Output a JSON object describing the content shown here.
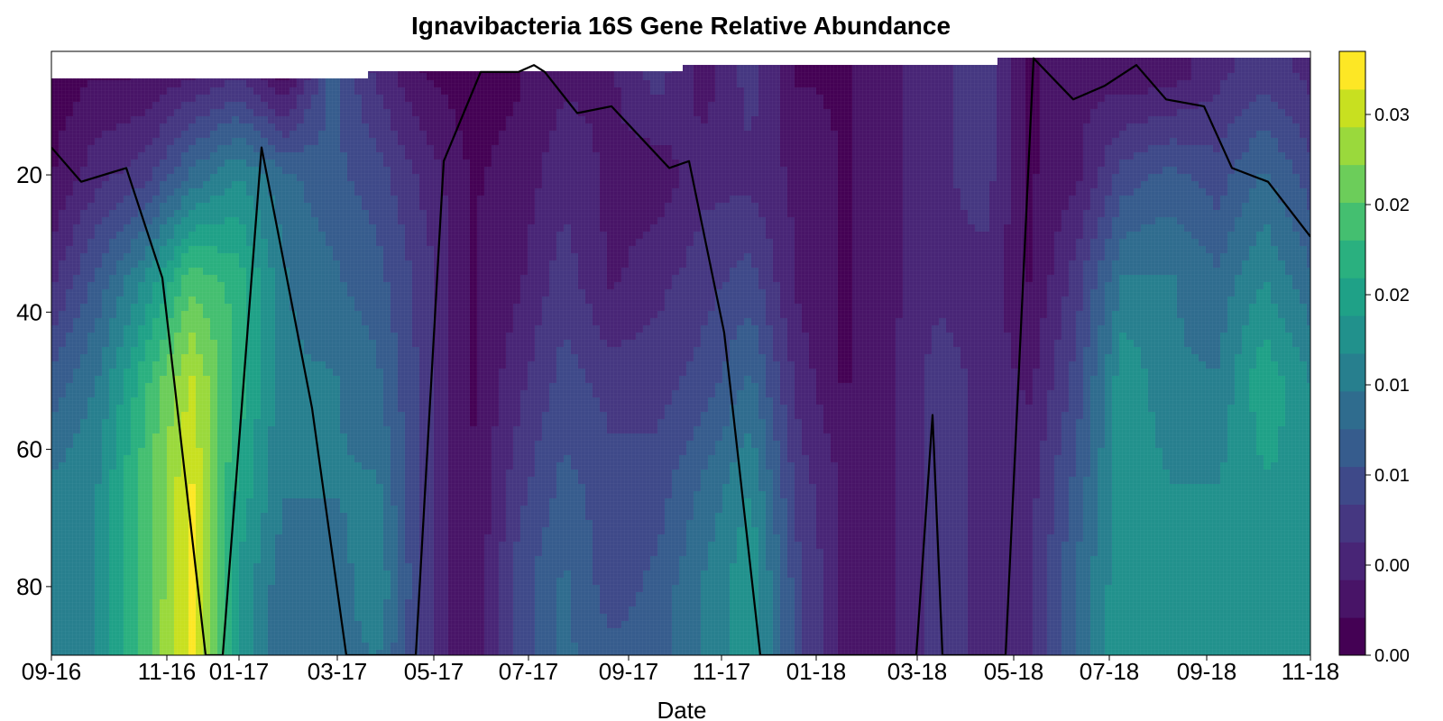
{
  "chart_data": {
    "type": "heatmap",
    "title": "Ignavibacteria 16S Gene Relative Abundance",
    "xlabel": "Date",
    "ylabel": "",
    "x_ticks": [
      "09-16",
      "11-16",
      "01-17",
      "03-17",
      "05-17",
      "07-17",
      "09-17",
      "11-17",
      "01-18",
      "03-18",
      "05-18",
      "07-18",
      "09-18",
      "11-18"
    ],
    "y_ticks": [
      20,
      40,
      60,
      80
    ],
    "y_reversed": true,
    "ylim": [
      90,
      2
    ],
    "colorbar": {
      "ticks": [
        "0.00",
        "0.00",
        "0.01",
        "0.01",
        "0.02",
        "0.02",
        "0.03"
      ],
      "range": [
        0,
        0.036
      ],
      "levels": [
        "#440154",
        "#481467",
        "#482576",
        "#453781",
        "#3e4989",
        "#365c8d",
        "#2f6c8e",
        "#277f8e",
        "#21918c",
        "#1fa187",
        "#2ab07f",
        "#44bf70",
        "#6ccd5a",
        "#9ad93c",
        "#c8e020",
        "#fde725"
      ]
    },
    "dates": [
      "09-16",
      "10-16",
      "11-16",
      "11-16b",
      "12-16",
      "01-17",
      "02-17",
      "03-17",
      "04-17",
      "05-17",
      "06-17",
      "07-17",
      "08-17",
      "09-17",
      "10-17",
      "11-17",
      "12-17",
      "01-18",
      "02-18",
      "03-18",
      "04-18",
      "05-18",
      "06-18",
      "07-18",
      "08-18",
      "09-18",
      "10-18",
      "11-18"
    ],
    "abundance_grid_depths": [
      5,
      20,
      35,
      50,
      65,
      80,
      90
    ],
    "abundance_grid": [
      [
        0.001,
        0.002,
        0.002,
        0.004,
        0.006,
        0.001,
        0.012,
        0.006,
        0.002,
        0.001,
        0.002,
        0.004,
        0.004,
        0.008,
        0.003,
        0.008,
        0.002,
        0.002,
        0.004,
        0.006,
        0.008,
        0.002,
        0.004,
        0.003,
        0.003,
        0.006,
        0.008,
        0.006
      ],
      [
        0.002,
        0.006,
        0.008,
        0.014,
        0.018,
        0.014,
        0.012,
        0.01,
        0.006,
        0.002,
        0.003,
        0.006,
        0.004,
        0.003,
        0.006,
        0.006,
        0.004,
        0.002,
        0.004,
        0.006,
        0.008,
        0.002,
        0.004,
        0.01,
        0.012,
        0.01,
        0.014,
        0.01
      ],
      [
        0.006,
        0.012,
        0.018,
        0.026,
        0.024,
        0.016,
        0.014,
        0.012,
        0.008,
        0.002,
        0.004,
        0.008,
        0.004,
        0.006,
        0.008,
        0.01,
        0.004,
        0.002,
        0.004,
        0.006,
        0.006,
        0.002,
        0.008,
        0.016,
        0.016,
        0.014,
        0.018,
        0.014
      ],
      [
        0.012,
        0.016,
        0.024,
        0.032,
        0.024,
        0.016,
        0.016,
        0.014,
        0.008,
        0.002,
        0.006,
        0.01,
        0.008,
        0.008,
        0.01,
        0.014,
        0.006,
        0.002,
        0.004,
        0.008,
        0.006,
        0.004,
        0.01,
        0.02,
        0.016,
        0.016,
        0.022,
        0.018
      ],
      [
        0.016,
        0.018,
        0.026,
        0.034,
        0.022,
        0.016,
        0.016,
        0.016,
        0.008,
        0.002,
        0.008,
        0.012,
        0.01,
        0.01,
        0.014,
        0.018,
        0.008,
        0.004,
        0.004,
        0.008,
        0.006,
        0.006,
        0.012,
        0.02,
        0.018,
        0.018,
        0.02,
        0.02
      ],
      [
        0.016,
        0.018,
        0.026,
        0.034,
        0.02,
        0.014,
        0.014,
        0.018,
        0.008,
        0.002,
        0.01,
        0.014,
        0.01,
        0.012,
        0.016,
        0.02,
        0.01,
        0.004,
        0.004,
        0.008,
        0.006,
        0.006,
        0.014,
        0.02,
        0.018,
        0.018,
        0.018,
        0.02
      ],
      [
        0.016,
        0.018,
        0.026,
        0.035,
        0.02,
        0.014,
        0.014,
        0.016,
        0.008,
        0.002,
        0.01,
        0.014,
        0.012,
        0.012,
        0.016,
        0.02,
        0.01,
        0.004,
        0.004,
        0.008,
        0.006,
        0.006,
        0.014,
        0.02,
        0.018,
        0.018,
        0.018,
        0.02
      ]
    ],
    "line_series": {
      "color": "#000000",
      "points": [
        {
          "x": "09-16",
          "y": 16
        },
        {
          "x": "10-16",
          "y": 21
        },
        {
          "x": "11-16",
          "y": 19
        },
        {
          "x": "11-16b",
          "y": 35
        },
        {
          "x": "12-16",
          "y": 90
        },
        {
          "x": "12-16b",
          "y": 90
        },
        {
          "x": "02-17",
          "y": 16
        },
        {
          "x": "03-17",
          "y": 54
        },
        {
          "x": "04-17",
          "y": 90
        },
        {
          "x": "05-17",
          "y": 90
        },
        {
          "x": "05-17b",
          "y": 18
        },
        {
          "x": "06-17",
          "y": 5
        },
        {
          "x": "07-17",
          "y": 5
        },
        {
          "x": "07-17b",
          "y": 4
        },
        {
          "x": "07-17c",
          "y": 5
        },
        {
          "x": "08-17",
          "y": 11
        },
        {
          "x": "09-17",
          "y": 10
        },
        {
          "x": "10-17",
          "y": 19
        },
        {
          "x": "10-17b",
          "y": 18
        },
        {
          "x": "11-17",
          "y": 43
        },
        {
          "x": "12-17",
          "y": 90
        },
        {
          "x": "03-18",
          "y": 90
        },
        {
          "x": "03-18b",
          "y": 55
        },
        {
          "x": "04-18",
          "y": 90
        },
        {
          "x": "05-18",
          "y": 90
        },
        {
          "x": "06-18",
          "y": 3
        },
        {
          "x": "06-18b",
          "y": 9
        },
        {
          "x": "07-18",
          "y": 7
        },
        {
          "x": "08-18",
          "y": 4
        },
        {
          "x": "08-18b",
          "y": 9
        },
        {
          "x": "09-18",
          "y": 10
        },
        {
          "x": "10-18",
          "y": 19
        },
        {
          "x": "10-18b",
          "y": 21
        },
        {
          "x": "11-18",
          "y": 29
        }
      ]
    }
  }
}
